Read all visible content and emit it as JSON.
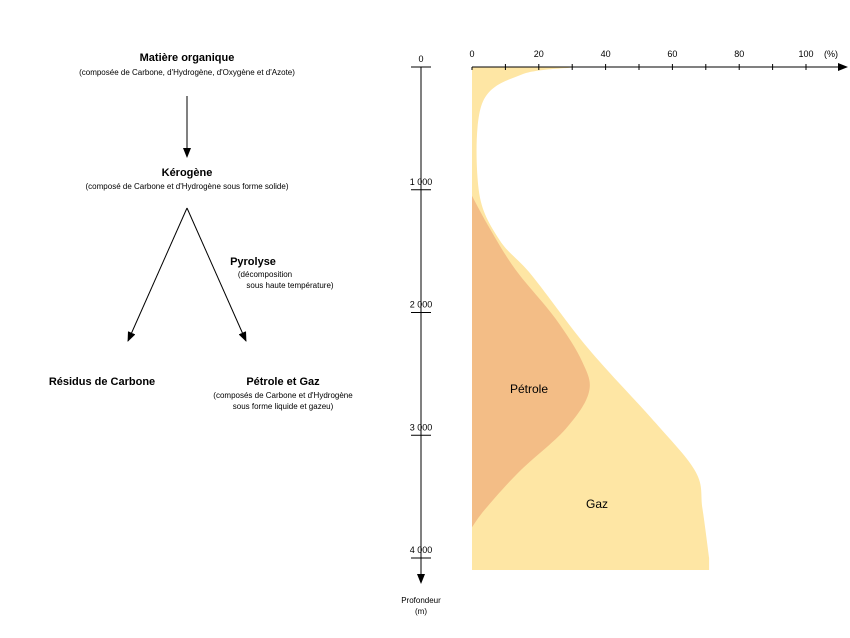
{
  "flow": {
    "organic": {
      "title": "Matière organique",
      "detail": "(composée de Carbone, d'Hydrogène, d'Oxygène et d'Azote)"
    },
    "kerogen": {
      "title": "Kérogène",
      "detail": "(composé de Carbone et d'Hydrogène sous forme solide)"
    },
    "pyrolysis": {
      "title": "Pyrolyse",
      "detail_1": "(décomposition",
      "detail_2": "sous haute température)"
    },
    "carbon_residue": {
      "title": "Résidus de Carbone"
    },
    "oil_gas": {
      "title": "Pétrole et Gaz",
      "detail_1": "(composés de Carbone et d'Hydrogène",
      "detail_2": "sous forme liquide et gazeu)"
    }
  },
  "chart_data": {
    "type": "area",
    "x_axis": {
      "unit_label": "(%)",
      "ticks": [
        "0",
        "20",
        "40",
        "60",
        "80",
        "100"
      ],
      "range": [
        0,
        100
      ]
    },
    "y_axis": {
      "label_line1": "Profondeur",
      "label_line2": "(m)",
      "ticks": [
        "0",
        "1 000",
        "2 000",
        "3 000",
        "4 000"
      ],
      "range": [
        0,
        4000
      ],
      "direction": "down"
    },
    "series": [
      {
        "name": "Gaz",
        "color": "#fee6a4",
        "points": [
          [
            0,
            0
          ],
          [
            30,
            0
          ],
          [
            15,
            60
          ],
          [
            3,
            300
          ],
          [
            2,
            1000
          ],
          [
            8,
            1400
          ],
          [
            18,
            1700
          ],
          [
            35,
            2300
          ],
          [
            55,
            2900
          ],
          [
            67,
            3300
          ],
          [
            69,
            3600
          ],
          [
            71,
            4000
          ]
        ]
      },
      {
        "name": "Pétrole",
        "color": "#f3bd86",
        "points": [
          [
            0,
            1050
          ],
          [
            5,
            1300
          ],
          [
            13,
            1650
          ],
          [
            25,
            2050
          ],
          [
            33,
            2400
          ],
          [
            35,
            2650
          ],
          [
            28,
            2950
          ],
          [
            14,
            3300
          ],
          [
            4,
            3600
          ],
          [
            0,
            3750
          ]
        ]
      }
    ],
    "grid": false
  }
}
